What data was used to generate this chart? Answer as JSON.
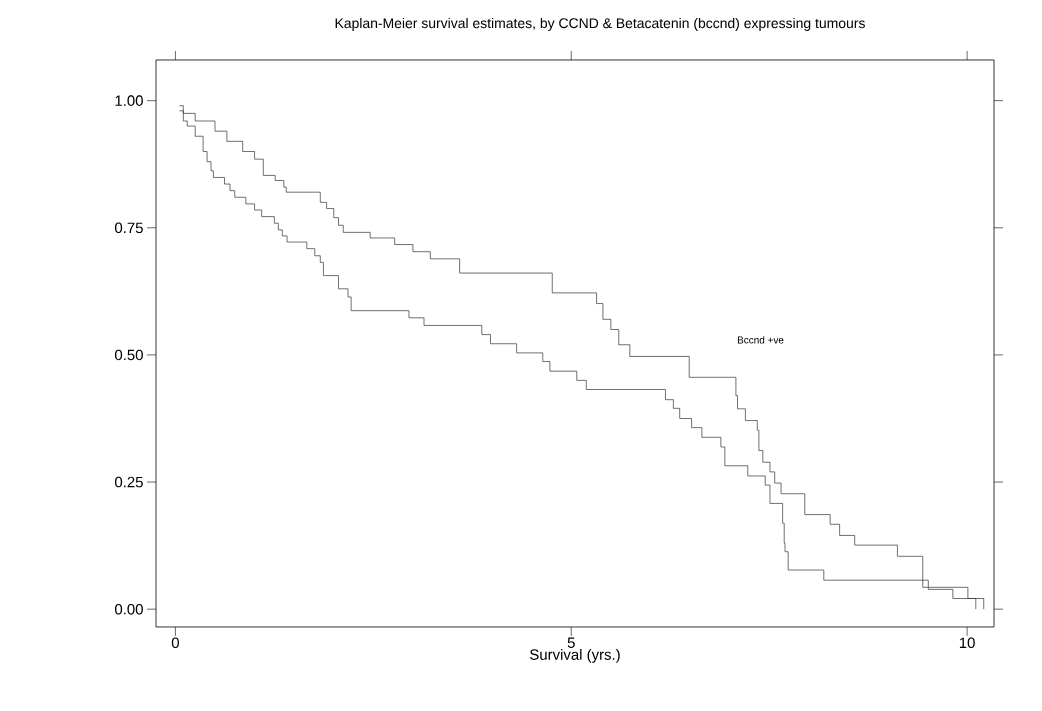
{
  "chart_data": {
    "type": "step",
    "title": "Kaplan-Meier survival estimates, by CCND & Betacatenin (bccnd) expressing tumours",
    "xlabel": "Survival (yrs.)",
    "xlim": [
      -0.245,
      10.34
    ],
    "ylim": [
      -0.035,
      1.08
    ],
    "xticks": [
      0,
      5,
      10
    ],
    "yticks": [
      {
        "value": 0,
        "label": "0.00"
      },
      {
        "value": 0.25,
        "label": "0.25"
      },
      {
        "value": 0.5,
        "label": "0.50"
      },
      {
        "value": 0.75,
        "label": "0.75"
      },
      {
        "value": 1,
        "label": "1.00"
      }
    ],
    "grid": false,
    "legend": false,
    "marker": "none",
    "line_style": "solid",
    "series": [
      {
        "name": "Bccnd +ve",
        "color": "#333333",
        "x": [
          0.05,
          0.1,
          0.25,
          0.5,
          0.65,
          0.85,
          1.0,
          1.11,
          1.26,
          1.37,
          1.4,
          1.83,
          1.91,
          2.0,
          2.06,
          2.12,
          2.46,
          2.77,
          3.0,
          3.22,
          3.59,
          4.76,
          5.32,
          5.4,
          5.5,
          5.6,
          5.74,
          6.49,
          7.08,
          7.1,
          7.2,
          7.35,
          7.37,
          7.42,
          7.51,
          7.57,
          7.65,
          7.95,
          8.27,
          8.39,
          8.58,
          9.12,
          9.44,
          10.01,
          10.21
        ],
        "values": [
          0.99,
          0.975,
          0.96,
          0.94,
          0.92,
          0.9,
          0.885,
          0.853,
          0.843,
          0.83,
          0.82,
          0.8,
          0.788,
          0.77,
          0.755,
          0.741,
          0.73,
          0.717,
          0.703,
          0.689,
          0.661,
          0.622,
          0.601,
          0.57,
          0.55,
          0.52,
          0.497,
          0.456,
          0.42,
          0.394,
          0.371,
          0.352,
          0.312,
          0.289,
          0.27,
          0.248,
          0.227,
          0.186,
          0.167,
          0.145,
          0.126,
          0.104,
          0.043,
          0.021,
          0
        ]
      },
      {
        "color": "#333333",
        "x": [
          0.05,
          0.1,
          0.15,
          0.25,
          0.35,
          0.4,
          0.45,
          0.48,
          0.62,
          0.69,
          0.75,
          0.89,
          1.0,
          1.09,
          1.25,
          1.3,
          1.35,
          1.41,
          1.66,
          1.76,
          1.83,
          1.87,
          2.06,
          2.18,
          2.22,
          2.95,
          3.14,
          3.87,
          3.98,
          4.31,
          4.64,
          4.73,
          5.07,
          5.19,
          6.19,
          6.29,
          6.37,
          6.52,
          6.65,
          6.89,
          6.94,
          7.23,
          7.45,
          7.51,
          7.67,
          7.69,
          7.7,
          7.74,
          8.19,
          9.51,
          9.82,
          10.11
        ],
        "values": [
          0.98,
          0.96,
          0.95,
          0.93,
          0.9,
          0.88,
          0.862,
          0.849,
          0.836,
          0.823,
          0.81,
          0.797,
          0.785,
          0.772,
          0.759,
          0.746,
          0.734,
          0.722,
          0.709,
          0.695,
          0.682,
          0.656,
          0.63,
          0.614,
          0.587,
          0.573,
          0.558,
          0.54,
          0.522,
          0.504,
          0.487,
          0.468,
          0.45,
          0.432,
          0.412,
          0.395,
          0.375,
          0.357,
          0.338,
          0.319,
          0.282,
          0.262,
          0.244,
          0.208,
          0.169,
          0.13,
          0.113,
          0.077,
          0.057,
          0.039,
          0.021,
          0
        ]
      }
    ]
  }
}
